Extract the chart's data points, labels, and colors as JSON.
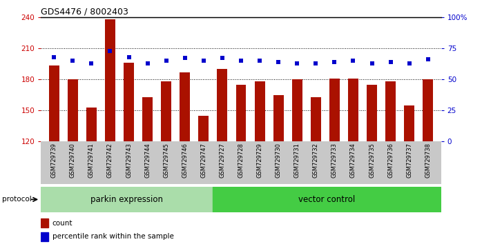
{
  "title": "GDS4476 / 8002403",
  "samples": [
    "GSM729739",
    "GSM729740",
    "GSM729741",
    "GSM729742",
    "GSM729743",
    "GSM729744",
    "GSM729745",
    "GSM729746",
    "GSM729747",
    "GSM729727",
    "GSM729728",
    "GSM729729",
    "GSM729730",
    "GSM729731",
    "GSM729732",
    "GSM729733",
    "GSM729734",
    "GSM729735",
    "GSM729736",
    "GSM729737",
    "GSM729738"
  ],
  "bar_values": [
    193,
    180,
    153,
    238,
    196,
    163,
    178,
    187,
    145,
    190,
    175,
    178,
    165,
    180,
    163,
    181,
    181,
    175,
    178,
    155,
    180
  ],
  "percentile_values": [
    68,
    65,
    63,
    73,
    68,
    63,
    65,
    67,
    65,
    67,
    65,
    65,
    64,
    63,
    63,
    64,
    65,
    63,
    64,
    63,
    66
  ],
  "parkin_count": 9,
  "vector_count": 12,
  "bar_color": "#aa1100",
  "percentile_color": "#0000cc",
  "parkin_color": "#aaddaa",
  "vector_color": "#44cc44",
  "ylim_left": [
    120,
    240
  ],
  "ylim_right": [
    0,
    100
  ],
  "yticks_left": [
    120,
    150,
    180,
    210,
    240
  ],
  "yticks_right": [
    0,
    25,
    50,
    75,
    100
  ],
  "ytick_right_labels": [
    "0",
    "25",
    "50",
    "75",
    "100%"
  ],
  "ylabel_left_color": "#cc0000",
  "ylabel_right_color": "#0000cc",
  "legend_count_label": "count",
  "legend_pct_label": "percentile rank within the sample",
  "protocol_label": "protocol",
  "parkin_label": "parkin expression",
  "vector_label": "vector control",
  "background_color": "#ffffff",
  "plot_bg_color": "#ffffff",
  "bar_bottom": 120,
  "grid_lines": [
    150,
    180,
    210
  ]
}
